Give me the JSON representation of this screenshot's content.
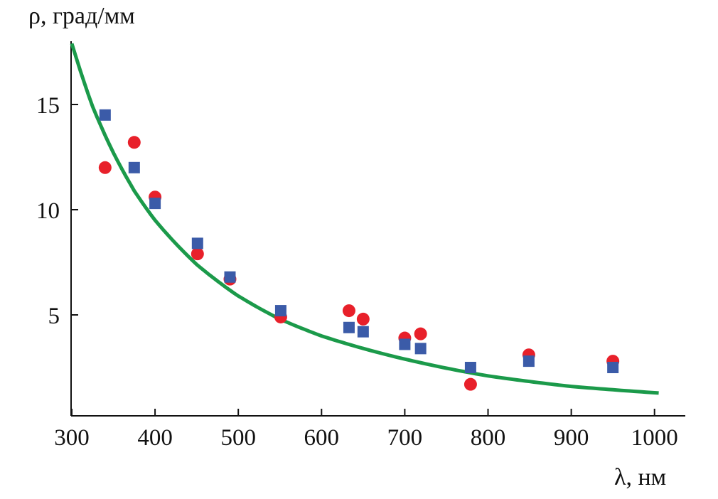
{
  "chart_data": {
    "type": "scatter",
    "title": "",
    "xlabel": "λ, нм",
    "ylabel": "ρ, град/мм",
    "xlim": [
      300,
      1040
    ],
    "ylim": [
      0.2,
      18
    ],
    "xticks": [
      300,
      400,
      500,
      600,
      700,
      800,
      900,
      1000
    ],
    "yticks": [
      5,
      10,
      15
    ],
    "grid": false,
    "colors": {
      "circles": "#e8202a",
      "squares": "#3b5ba8",
      "curve": "#1b9a4a"
    },
    "series": [
      {
        "name": "circles",
        "marker": "circle",
        "x": [
          340,
          375,
          400,
          451,
          490,
          551,
          633,
          650,
          700,
          719,
          779,
          849,
          950
        ],
        "y": [
          12.0,
          13.2,
          10.6,
          7.9,
          6.7,
          4.9,
          5.2,
          4.8,
          3.9,
          4.1,
          1.7,
          3.1,
          2.8
        ]
      },
      {
        "name": "squares",
        "marker": "square",
        "x": [
          340,
          375,
          400,
          451,
          490,
          551,
          633,
          650,
          700,
          719,
          779,
          849,
          950
        ],
        "y": [
          14.5,
          12.0,
          10.3,
          8.4,
          6.8,
          5.2,
          4.4,
          4.2,
          3.6,
          3.4,
          2.5,
          2.8,
          2.5
        ]
      },
      {
        "name": "fit",
        "marker": "line",
        "x": [
          300,
          325,
          350,
          375,
          400,
          450,
          500,
          550,
          600,
          700,
          800,
          900,
          1000
        ],
        "y": [
          17.9,
          14.9,
          12.7,
          10.9,
          9.5,
          7.4,
          5.9,
          4.8,
          4.0,
          2.9,
          2.1,
          1.6,
          1.3
        ]
      }
    ]
  }
}
